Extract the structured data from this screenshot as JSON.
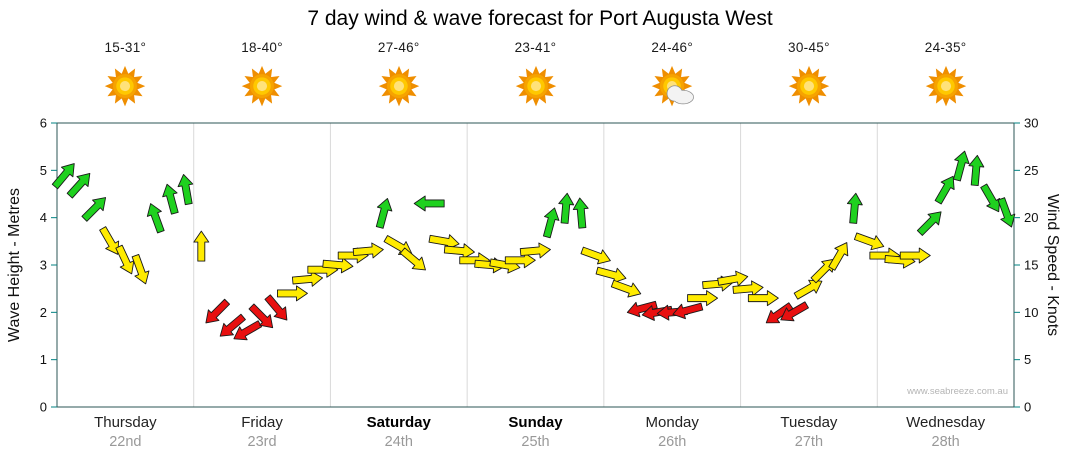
{
  "title": "7 day wind & wave forecast for Port Augusta West",
  "watermark": "www.seabreeze.com.au",
  "days": [
    {
      "name": "Thursday",
      "date": "22nd",
      "temp": "15-31°",
      "icon": "sun",
      "emphasis": false
    },
    {
      "name": "Friday",
      "date": "23rd",
      "temp": "18-40°",
      "icon": "sun",
      "emphasis": false
    },
    {
      "name": "Saturday",
      "date": "24th",
      "temp": "27-46°",
      "icon": "sun",
      "emphasis": true
    },
    {
      "name": "Sunday",
      "date": "25th",
      "temp": "23-41°",
      "icon": "sun",
      "emphasis": true
    },
    {
      "name": "Monday",
      "date": "26th",
      "temp": "24-46°",
      "icon": "sun-cloud",
      "emphasis": false
    },
    {
      "name": "Tuesday",
      "date": "27th",
      "temp": "30-45°",
      "icon": "sun",
      "emphasis": false
    },
    {
      "name": "Wednesday",
      "date": "28th",
      "temp": "24-35°",
      "icon": "sun",
      "emphasis": false
    }
  ],
  "chart_data": {
    "type": "scatter",
    "marker": "wind-direction-arrow",
    "title": "7 day wind & wave forecast for Port Augusta West",
    "x_categories": [
      "Thursday 22nd",
      "Friday 23rd",
      "Saturday 24th",
      "Sunday 25th",
      "Monday 26th",
      "Tuesday 27th",
      "Wednesday 28th"
    ],
    "points_per_day": 9,
    "point_format": [
      "wind_speed_knots",
      "direction_deg_clockwise_from_up"
    ],
    "y_left": {
      "label": "Wave Height - Metres",
      "range": [
        0,
        6
      ],
      "ticks": [
        0,
        1,
        2,
        3,
        4,
        5,
        6
      ]
    },
    "y_right": {
      "label": "Wind Speed - Knots",
      "range": [
        0,
        30
      ],
      "ticks": [
        0,
        5,
        10,
        15,
        20,
        25,
        30
      ]
    },
    "grid": "vertical-day-separators-only",
    "thresholds": {
      "green_min_knots": 19,
      "red_max_knots": 10.5
    },
    "colors": {
      "green": "#1fd11f",
      "yellow": "#ffeb00",
      "red": "#e81010"
    },
    "color_coding": {
      "green": "knots >= 19",
      "yellow": "10.5 < knots < 19",
      "red": "knots <= 10.5"
    },
    "series": [
      {
        "name": "Wind speed & direction",
        "points": [
          [
            24.5,
            40
          ],
          [
            23.5,
            42
          ],
          [
            21,
            45
          ],
          [
            17.5,
            150
          ],
          [
            15.5,
            155
          ],
          [
            14.5,
            160
          ],
          [
            20,
            -20
          ],
          [
            22,
            -15
          ],
          [
            23,
            -10
          ],
          [
            17,
            0
          ],
          [
            10,
            225
          ],
          [
            8.5,
            230
          ],
          [
            8,
            240
          ],
          [
            9.5,
            135
          ],
          [
            10.4,
            140
          ],
          [
            12,
            90
          ],
          [
            13.5,
            85
          ],
          [
            14.5,
            90
          ],
          [
            15,
            95
          ],
          [
            16,
            90
          ],
          [
            16.5,
            85
          ],
          [
            20.5,
            15
          ],
          [
            17,
            120
          ],
          [
            15.5,
            130
          ],
          [
            21.5,
            -90
          ],
          [
            17.5,
            100
          ],
          [
            16.5,
            95
          ],
          [
            15.5,
            90
          ],
          [
            15,
            95
          ],
          [
            15,
            100
          ],
          [
            15.5,
            90
          ],
          [
            16.5,
            85
          ],
          [
            19.5,
            15
          ],
          [
            21,
            5
          ],
          [
            20.5,
            -5
          ],
          [
            16,
            110
          ],
          [
            14,
            105
          ],
          [
            12.5,
            110
          ],
          [
            10.4,
            255
          ],
          [
            10,
            260
          ],
          [
            10,
            265
          ],
          [
            10.2,
            255
          ],
          [
            11.5,
            90
          ],
          [
            13,
            85
          ],
          [
            13.5,
            80
          ],
          [
            12.5,
            85
          ],
          [
            11.5,
            90
          ],
          [
            9.8,
            235
          ],
          [
            10,
            240
          ],
          [
            12.5,
            60
          ],
          [
            14.5,
            45
          ],
          [
            16,
            30
          ],
          [
            21,
            5
          ],
          [
            17.5,
            110
          ],
          [
            16,
            90
          ],
          [
            15.5,
            95
          ],
          [
            16,
            90
          ],
          [
            19.5,
            45
          ],
          [
            23,
            30
          ],
          [
            25.5,
            15
          ],
          [
            25,
            5
          ],
          [
            22,
            150
          ],
          [
            20.5,
            160
          ]
        ]
      }
    ]
  }
}
